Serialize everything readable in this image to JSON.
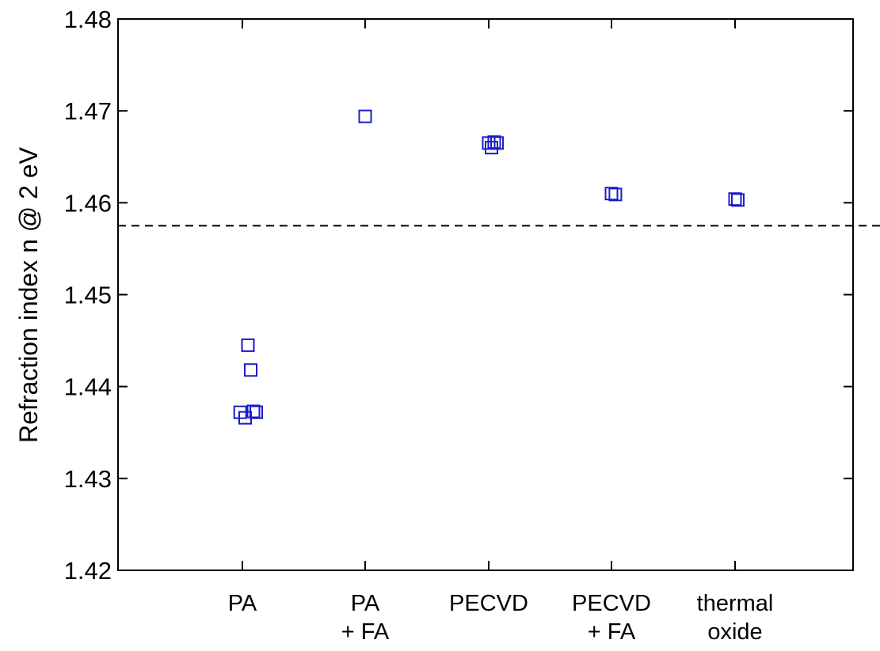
{
  "chart_data": {
    "type": "scatter",
    "title": "",
    "xlabel": "",
    "ylabel": "Refraction index n @ 2 eV",
    "ylim": [
      1.42,
      1.48
    ],
    "yticks": [
      "1.42",
      "1.43",
      "1.44",
      "1.45",
      "1.46",
      "1.47",
      "1.48"
    ],
    "categories": [
      {
        "lines": [
          "PA"
        ]
      },
      {
        "lines": [
          "PA",
          "+ FA"
        ]
      },
      {
        "lines": [
          "PECVD"
        ]
      },
      {
        "lines": [
          "PECVD",
          "+ FA"
        ]
      },
      {
        "lines": [
          "thermal",
          "oxide"
        ]
      }
    ],
    "reference_line": {
      "y": 1.4575,
      "style": "dashed"
    },
    "marker": {
      "shape": "square",
      "color": "#1a1acc",
      "filled": false
    },
    "points": [
      {
        "category": 0,
        "offset": -0.04,
        "y": 1.4372
      },
      {
        "category": 0,
        "offset": 0.05,
        "y": 1.4366
      },
      {
        "category": 0,
        "offset": 0.1,
        "y": 1.4445
      },
      {
        "category": 0,
        "offset": 0.15,
        "y": 1.4418
      },
      {
        "category": 0,
        "offset": 0.2,
        "y": 1.4373
      },
      {
        "category": 0,
        "offset": 0.25,
        "y": 1.4372
      },
      {
        "category": 1,
        "offset": 0.0,
        "y": 1.4694
      },
      {
        "category": 2,
        "offset": 0.0,
        "y": 1.4665
      },
      {
        "category": 2,
        "offset": 0.05,
        "y": 1.466
      },
      {
        "category": 2,
        "offset": 0.1,
        "y": 1.4666
      },
      {
        "category": 2,
        "offset": 0.15,
        "y": 1.4665
      },
      {
        "category": 3,
        "offset": 0.0,
        "y": 1.461
      },
      {
        "category": 3,
        "offset": 0.07,
        "y": 1.4609
      },
      {
        "category": 4,
        "offset": 0.0,
        "y": 1.4604
      },
      {
        "category": 4,
        "offset": 0.05,
        "y": 1.4603
      }
    ],
    "grid": false,
    "legend": "none"
  }
}
